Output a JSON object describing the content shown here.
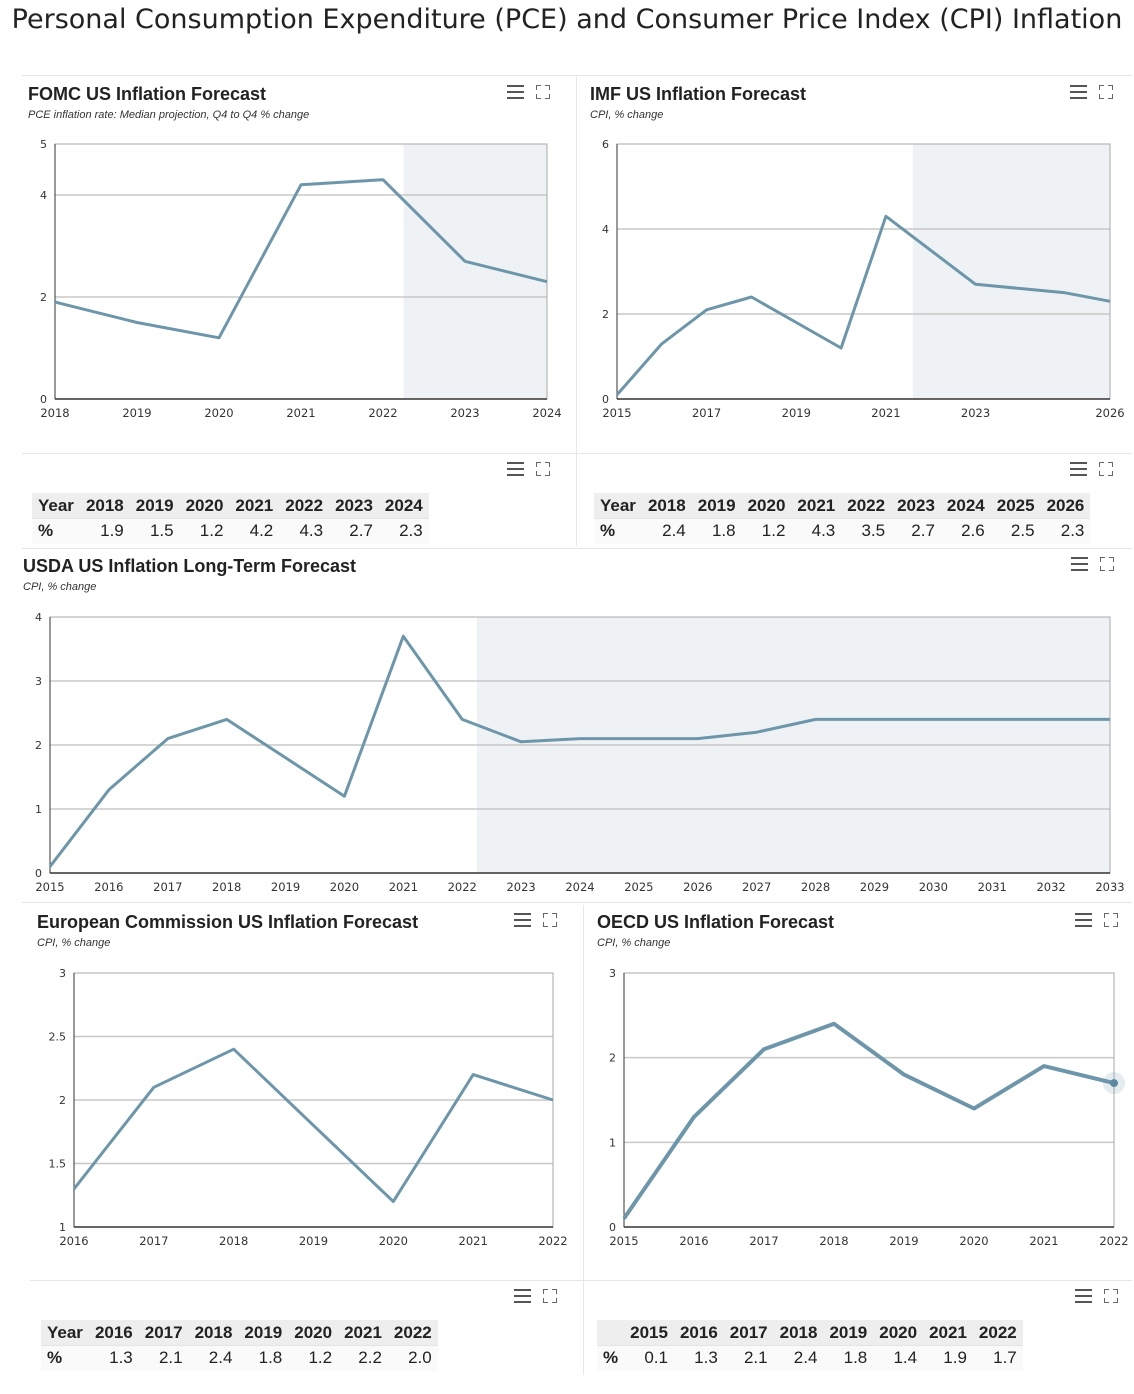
{
  "page_title": "Personal Consumption Expenditure (PCE) and Consumer Price Index (CPI) Inflation",
  "icons": {
    "menu": "hamburger-menu-icon",
    "expand": "expand-icon"
  },
  "colors": {
    "line": "#6d96aa",
    "forecast_band": "#eef2f5",
    "grid": "#c8c8c8",
    "axis": "#333333"
  },
  "chart_data": [
    {
      "id": "fomc",
      "type": "line",
      "title": "FOMC US Inflation Forecast",
      "subtitle": "PCE inflation rate: Median projection, Q4 to Q4 % change",
      "x": [
        2018,
        2019,
        2020,
        2021,
        2022,
        2023,
        2024
      ],
      "series": [
        {
          "values": [
            1.9,
            1.5,
            1.2,
            4.2,
            4.3,
            2.7,
            2.3
          ]
        }
      ],
      "xlim": [
        2018,
        2024
      ],
      "ylim": [
        0,
        5
      ],
      "yticks": [
        0,
        2,
        4,
        5
      ],
      "xticks": [
        2018,
        2019,
        2020,
        2021,
        2022,
        2023,
        2024
      ],
      "gridlines": [
        2,
        4
      ],
      "forecast_from": 2022.25,
      "table": {
        "header": "Year",
        "row_label": "%",
        "years": [
          "2018",
          "2019",
          "2020",
          "2021",
          "2022",
          "2023",
          "2024"
        ],
        "values": [
          "1.9",
          "1.5",
          "1.2",
          "4.2",
          "4.3",
          "2.7",
          "2.3"
        ]
      }
    },
    {
      "id": "imf",
      "type": "line",
      "title": "IMF US Inflation Forecast",
      "subtitle": "CPI, % change",
      "x": [
        2015,
        2016,
        2017,
        2018,
        2019,
        2020,
        2021,
        2022,
        2023,
        2024,
        2025,
        2026
      ],
      "series": [
        {
          "values": [
            0.1,
            1.3,
            2.1,
            2.4,
            1.8,
            1.2,
            4.3,
            3.5,
            2.7,
            2.6,
            2.5,
            2.3
          ]
        }
      ],
      "xlim": [
        2015,
        2026
      ],
      "ylim": [
        0,
        6
      ],
      "yticks": [
        0,
        2,
        4,
        6
      ],
      "xticks": [
        2015,
        2017,
        2019,
        2021,
        2023,
        2026
      ],
      "gridlines": [
        2,
        4
      ],
      "forecast_from": 2021.6,
      "table": {
        "header": "Year",
        "row_label": "%",
        "years": [
          "2018",
          "2019",
          "2020",
          "2021",
          "2022",
          "2023",
          "2024",
          "2025",
          "2026"
        ],
        "values": [
          "2.4",
          "1.8",
          "1.2",
          "4.3",
          "3.5",
          "2.7",
          "2.6",
          "2.5",
          "2.3"
        ]
      }
    },
    {
      "id": "usda",
      "type": "line",
      "title": "USDA US Inflation Long-Term Forecast",
      "subtitle": "CPI, % change",
      "x": [
        2015,
        2016,
        2017,
        2018,
        2019,
        2020,
        2021,
        2022,
        2023,
        2024,
        2025,
        2026,
        2027,
        2028,
        2029,
        2030,
        2031,
        2032,
        2033
      ],
      "series": [
        {
          "values": [
            0.1,
            1.3,
            2.1,
            2.4,
            1.8,
            1.2,
            3.7,
            2.4,
            2.05,
            2.1,
            2.1,
            2.1,
            2.2,
            2.4,
            2.4,
            2.4,
            2.4,
            2.4,
            2.4
          ]
        }
      ],
      "xlim": [
        2015,
        2033
      ],
      "ylim": [
        0,
        4
      ],
      "yticks": [
        0,
        1,
        2,
        3,
        4
      ],
      "xticks": [
        2015,
        2016,
        2017,
        2018,
        2019,
        2020,
        2021,
        2022,
        2023,
        2024,
        2025,
        2026,
        2027,
        2028,
        2029,
        2030,
        2031,
        2032,
        2033
      ],
      "gridlines": [
        1,
        2,
        3
      ],
      "forecast_from": 2022.25
    },
    {
      "id": "ec",
      "type": "line",
      "title": "European Commission US Inflation Forecast",
      "subtitle": "CPI, % change",
      "x": [
        2016,
        2017,
        2018,
        2019,
        2020,
        2021,
        2022
      ],
      "series": [
        {
          "values": [
            1.3,
            2.1,
            2.4,
            1.8,
            1.2,
            2.2,
            2.0
          ]
        }
      ],
      "xlim": [
        2016,
        2022
      ],
      "ylim": [
        1,
        3
      ],
      "yticks": [
        1,
        1.5,
        2,
        2.5,
        3
      ],
      "ytick_labels": [
        "1",
        "1.5",
        "2",
        "2.5",
        "3"
      ],
      "xticks": [
        2016,
        2017,
        2018,
        2019,
        2020,
        2021,
        2022
      ],
      "gridlines": [
        1.5,
        2,
        2.5
      ],
      "table": {
        "header": "Year",
        "row_label": "%",
        "years": [
          "2016",
          "2017",
          "2018",
          "2019",
          "2020",
          "2021",
          "2022"
        ],
        "values": [
          "1.3",
          "2.1",
          "2.4",
          "1.8",
          "1.2",
          "2.2",
          "2.0"
        ]
      }
    },
    {
      "id": "oecd",
      "type": "line",
      "title": "OECD US Inflation Forecast",
      "subtitle": "CPI, % change",
      "x": [
        2015,
        2016,
        2017,
        2018,
        2019,
        2020,
        2021,
        2022
      ],
      "series": [
        {
          "values": [
            0.1,
            1.3,
            2.1,
            2.4,
            1.8,
            1.4,
            1.9,
            1.7
          ]
        }
      ],
      "xlim": [
        2015,
        2022
      ],
      "ylim": [
        0,
        3
      ],
      "yticks": [
        0,
        1,
        2,
        3
      ],
      "xticks": [
        2015,
        2016,
        2017,
        2018,
        2019,
        2020,
        2021,
        2022
      ],
      "gridlines": [
        1,
        2
      ],
      "highlight_last": true,
      "table": {
        "header": "",
        "row_label": "%",
        "years": [
          "2015",
          "2016",
          "2017",
          "2018",
          "2019",
          "2020",
          "2021",
          "2022"
        ],
        "values": [
          "0.1",
          "1.3",
          "2.1",
          "2.4",
          "1.8",
          "1.4",
          "1.9",
          "1.7"
        ]
      }
    }
  ]
}
